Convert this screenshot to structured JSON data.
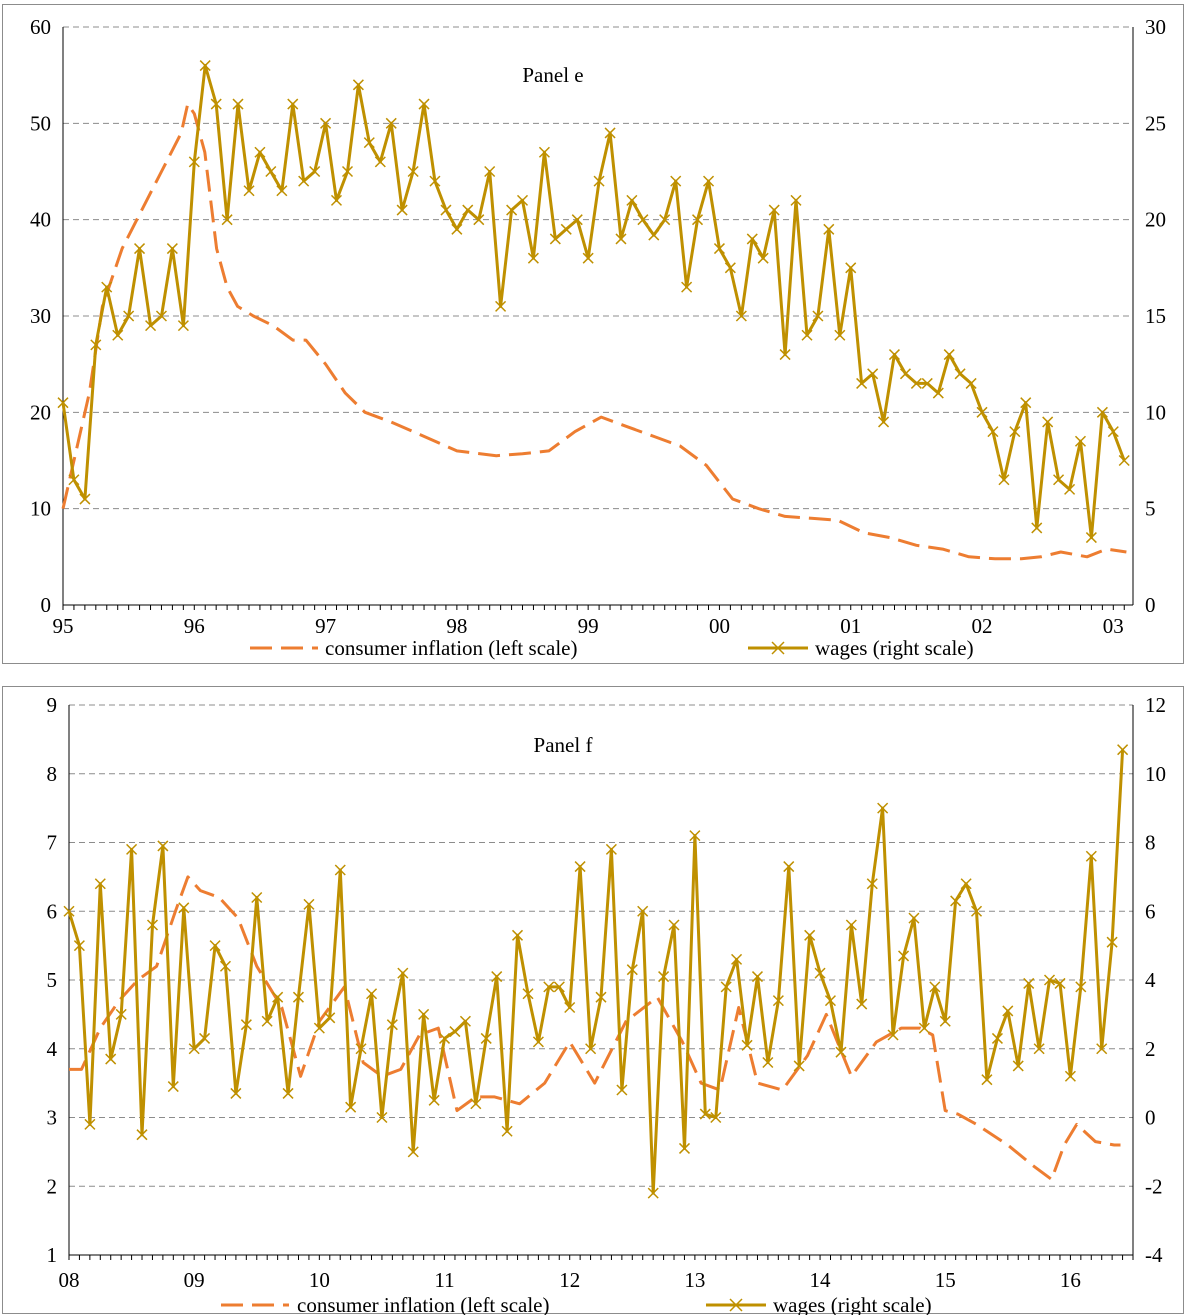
{
  "colors": {
    "inflation": "#ED7D31",
    "wages": "#BF9000",
    "grid": "#8C8C8C",
    "axis": "#000000"
  },
  "chart_data": [
    {
      "type": "line",
      "title": "Panel e",
      "grid": true,
      "legend_position": "bottom",
      "x_tick_labels": [
        "95",
        "96",
        "97",
        "98",
        "99",
        "00",
        "01",
        "02",
        "03"
      ],
      "y_left": {
        "lim": [
          0,
          60
        ],
        "ticks": [
          0,
          10,
          20,
          30,
          40,
          50,
          60
        ],
        "tick_labels": [
          "0",
          "10",
          "20",
          "30",
          "40",
          "50",
          "60"
        ]
      },
      "y_right": {
        "lim": [
          0,
          30
        ],
        "ticks": [
          0,
          5,
          10,
          15,
          20,
          25,
          30
        ],
        "tick_labels": [
          "0",
          "5",
          "10",
          "15",
          "20",
          "25",
          "30"
        ]
      },
      "series": [
        {
          "name": "consumer inflation (left scale)",
          "axis": "left",
          "style": "dashed",
          "color_key": "inflation",
          "x": [
            95.0,
            95.2,
            95.3,
            95.45,
            95.6,
            95.75,
            95.9,
            95.95,
            96.0,
            96.08,
            96.17,
            96.25,
            96.33,
            96.45,
            96.6,
            96.75,
            96.85,
            97.0,
            97.15,
            97.3,
            97.5,
            97.75,
            98.0,
            98.3,
            98.5,
            98.7,
            98.9,
            99.1,
            99.3,
            99.5,
            99.7,
            99.9,
            100.1,
            100.3,
            100.5,
            100.7,
            100.9,
            101.1,
            101.3,
            101.5,
            101.7,
            101.9,
            102.1,
            102.3,
            102.45,
            102.6,
            102.8,
            102.95,
            103.1
          ],
          "y": [
            10,
            22,
            31,
            37,
            41,
            45,
            49,
            52,
            51,
            47,
            37,
            33,
            31,
            30,
            29,
            27.5,
            27.5,
            25,
            22,
            20,
            19,
            17.5,
            16,
            15.5,
            15.7,
            16,
            18,
            19.5,
            18.5,
            17.5,
            16.5,
            14.5,
            11,
            10,
            9.2,
            9,
            8.8,
            7.5,
            7,
            6.2,
            5.8,
            5,
            4.8,
            4.8,
            5,
            5.5,
            5,
            5.8,
            5.5
          ]
        },
        {
          "name": "wages (right scale)",
          "axis": "right",
          "style": "solid-x-markers",
          "color_key": "wages",
          "x": [
            95.0,
            95.083,
            95.167,
            95.25,
            95.333,
            95.417,
            95.5,
            95.583,
            95.667,
            95.75,
            95.833,
            95.917,
            96.0,
            96.083,
            96.167,
            96.25,
            96.333,
            96.417,
            96.5,
            96.583,
            96.667,
            96.75,
            96.833,
            96.917,
            97.0,
            97.083,
            97.167,
            97.25,
            97.333,
            97.417,
            97.5,
            97.583,
            97.667,
            97.75,
            97.833,
            97.917,
            98.0,
            98.083,
            98.167,
            98.25,
            98.333,
            98.417,
            98.5,
            98.583,
            98.667,
            98.75,
            98.833,
            98.917,
            99.0,
            99.083,
            99.167,
            99.25,
            99.333,
            99.417,
            99.5,
            99.583,
            99.667,
            99.75,
            99.833,
            99.917,
            100.0,
            100.083,
            100.167,
            100.25,
            100.333,
            100.417,
            100.5,
            100.583,
            100.667,
            100.75,
            100.833,
            100.917,
            101.0,
            101.083,
            101.167,
            101.25,
            101.333,
            101.417,
            101.5,
            101.583,
            101.667,
            101.75,
            101.833,
            101.917,
            102.0,
            102.083,
            102.167,
            102.25,
            102.333,
            102.417,
            102.5,
            102.583,
            102.667,
            102.75,
            102.833,
            102.917,
            103.0,
            103.083
          ],
          "y": [
            10.5,
            6.5,
            5.5,
            13.5,
            16.5,
            14,
            15,
            18.5,
            14.5,
            15,
            18.5,
            14.5,
            23,
            28,
            26,
            20,
            26,
            21.5,
            23.5,
            22.5,
            21.5,
            26,
            22,
            22.5,
            25,
            21,
            22.5,
            27,
            24,
            23,
            25,
            20.5,
            22.5,
            26,
            22,
            20.5,
            19.5,
            20.5,
            20,
            22.5,
            15.5,
            20.5,
            21,
            18,
            23.5,
            19,
            19.5,
            20,
            18,
            22,
            24.5,
            19,
            21,
            20,
            19.2,
            20,
            22,
            16.5,
            20,
            22,
            18.5,
            17.5,
            15,
            19,
            18,
            20.5,
            13,
            21,
            14,
            15,
            19.5,
            14,
            17.5,
            11.5,
            12,
            9.5,
            13,
            12,
            11.5,
            11.5,
            11,
            13,
            12,
            11.5,
            10,
            9,
            6.5,
            9,
            10.5,
            4,
            9.5,
            6.5,
            6,
            8.5,
            3.5,
            10,
            9,
            7.5
          ]
        }
      ]
    },
    {
      "type": "line",
      "title": "Panel f",
      "grid": true,
      "legend_position": "bottom",
      "x_tick_labels": [
        "08",
        "09",
        "10",
        "11",
        "12",
        "13",
        "14",
        "15",
        "16"
      ],
      "y_left": {
        "lim": [
          1,
          9
        ],
        "ticks": [
          1,
          2,
          3,
          4,
          5,
          6,
          7,
          8,
          9
        ],
        "tick_labels": [
          "1",
          "2",
          "3",
          "4",
          "5",
          "6",
          "7",
          "8",
          "9"
        ]
      },
      "y_right": {
        "lim": [
          -4,
          12
        ],
        "ticks": [
          -4,
          -2,
          0,
          2,
          4,
          6,
          8,
          10,
          12
        ],
        "tick_labels": [
          "-4",
          "-2",
          "0",
          "2",
          "4",
          "6",
          "8",
          "10",
          "12"
        ]
      },
      "series": [
        {
          "name": "consumer inflation (left scale)",
          "axis": "left",
          "style": "dashed",
          "color_key": "inflation",
          "x": [
            108.0,
            108.1,
            108.25,
            108.4,
            108.55,
            108.7,
            108.85,
            108.95,
            109.05,
            109.2,
            109.35,
            109.5,
            109.7,
            109.85,
            110.0,
            110.2,
            110.35,
            110.5,
            110.65,
            110.8,
            110.95,
            111.1,
            111.25,
            111.4,
            111.6,
            111.8,
            112.0,
            112.2,
            112.45,
            112.7,
            112.9,
            113.05,
            113.2,
            113.35,
            113.5,
            113.7,
            113.9,
            114.05,
            114.25,
            114.45,
            114.65,
            114.8,
            114.9,
            115.0,
            115.1,
            115.25,
            115.5,
            115.7,
            115.85,
            115.95,
            116.05,
            116.2,
            116.35,
            116.4
          ],
          "y": [
            3.7,
            3.7,
            4.3,
            4.7,
            5,
            5.2,
            6,
            6.5,
            6.3,
            6.2,
            5.9,
            5.2,
            4.6,
            3.6,
            4.4,
            4.9,
            3.8,
            3.6,
            3.7,
            4.2,
            4.3,
            3.1,
            3.3,
            3.3,
            3.2,
            3.5,
            4.1,
            3.5,
            4.4,
            4.75,
            4.1,
            3.5,
            3.4,
            4.6,
            3.5,
            3.4,
            3.9,
            4.5,
            3.6,
            4.1,
            4.3,
            4.3,
            4.2,
            3.1,
            3.05,
            2.9,
            2.6,
            2.3,
            2.1,
            2.6,
            2.9,
            2.65,
            2.6,
            2.6
          ]
        },
        {
          "name": "wages (right scale)",
          "axis": "right",
          "style": "solid-x-markers",
          "color_key": "wages",
          "x": [
            108.0,
            108.083,
            108.167,
            108.25,
            108.333,
            108.417,
            108.5,
            108.583,
            108.667,
            108.75,
            108.833,
            108.917,
            109.0,
            109.083,
            109.167,
            109.25,
            109.333,
            109.417,
            109.5,
            109.583,
            109.667,
            109.75,
            109.833,
            109.917,
            110.0,
            110.083,
            110.167,
            110.25,
            110.333,
            110.417,
            110.5,
            110.583,
            110.667,
            110.75,
            110.833,
            110.917,
            111.0,
            111.083,
            111.167,
            111.25,
            111.333,
            111.417,
            111.5,
            111.583,
            111.667,
            111.75,
            111.833,
            111.917,
            112.0,
            112.083,
            112.167,
            112.25,
            112.333,
            112.417,
            112.5,
            112.583,
            112.667,
            112.75,
            112.833,
            112.917,
            113.0,
            113.083,
            113.167,
            113.25,
            113.333,
            113.417,
            113.5,
            113.583,
            113.667,
            113.75,
            113.833,
            113.917,
            114.0,
            114.083,
            114.167,
            114.25,
            114.333,
            114.417,
            114.5,
            114.583,
            114.667,
            114.75,
            114.833,
            114.917,
            115.0,
            115.083,
            115.167,
            115.25,
            115.333,
            115.417,
            115.5,
            115.583,
            115.667,
            115.75,
            115.833,
            115.917,
            116.0,
            116.083,
            116.167,
            116.25,
            116.333,
            116.417
          ],
          "y": [
            6,
            5,
            -0.2,
            6.8,
            1.7,
            3,
            7.8,
            -0.5,
            5.6,
            7.9,
            0.9,
            6.1,
            2,
            2.3,
            5,
            4.4,
            0.7,
            2.7,
            6.4,
            2.8,
            3.5,
            0.7,
            3.5,
            6.2,
            2.6,
            2.9,
            7.2,
            0.3,
            2,
            3.6,
            0,
            2.7,
            4.2,
            -1,
            3,
            0.5,
            2.3,
            2.5,
            2.8,
            0.4,
            2.3,
            4.1,
            -0.4,
            5.3,
            3.6,
            2.2,
            3.8,
            3.8,
            3.2,
            7.3,
            2,
            3.5,
            7.8,
            0.8,
            4.3,
            6,
            -2.2,
            4.1,
            5.6,
            -0.9,
            8.2,
            0.1,
            0,
            3.8,
            4.6,
            2.1,
            4.1,
            1.6,
            3.4,
            7.3,
            1.5,
            5.3,
            4.2,
            3.4,
            1.9,
            5.6,
            3.3,
            6.8,
            9,
            2.4,
            4.7,
            5.8,
            2.6,
            3.8,
            2.8,
            6.3,
            6.8,
            6,
            1.1,
            2.3,
            3.1,
            1.5,
            3.9,
            2,
            4,
            3.9,
            1.2,
            3.8,
            7.6,
            2,
            5.1,
            10.7
          ]
        }
      ]
    }
  ]
}
